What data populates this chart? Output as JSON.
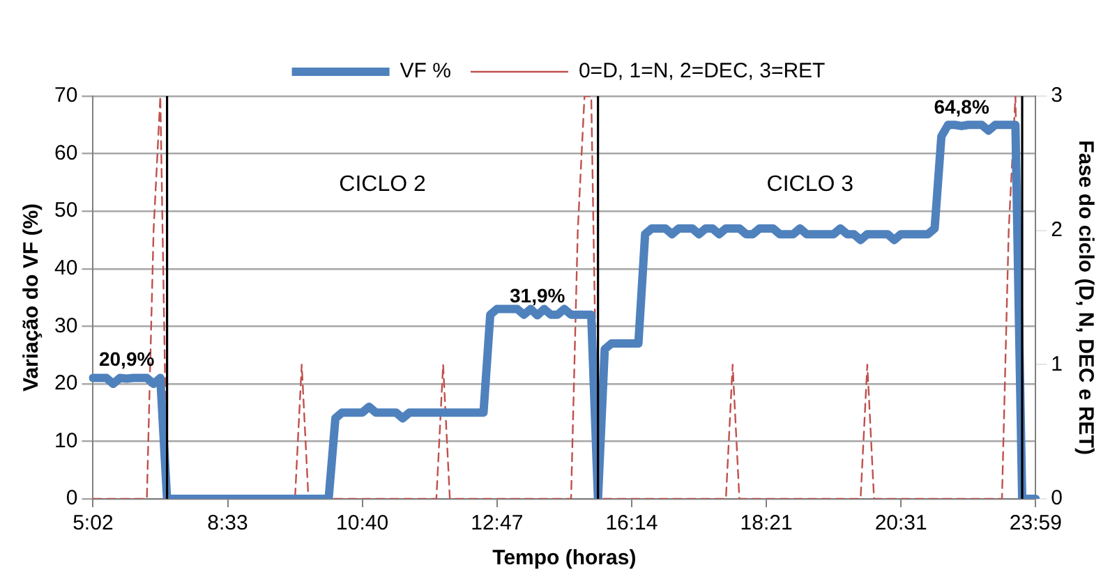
{
  "chart_data": {
    "type": "line",
    "xlabel": "Tempo (horas)",
    "ylabel": "Variação do VF (%)",
    "y2label": "Fase do ciclo (D, N, DEC e RET)",
    "categories": [
      "5:02",
      null,
      null,
      null,
      null,
      null,
      null,
      null,
      null,
      null,
      null,
      null,
      null,
      null,
      null,
      null,
      null,
      null,
      null,
      null,
      "8:33",
      null,
      null,
      null,
      null,
      null,
      null,
      null,
      null,
      null,
      null,
      null,
      null,
      null,
      null,
      null,
      null,
      null,
      null,
      null,
      "10:40",
      null,
      null,
      null,
      null,
      null,
      null,
      null,
      null,
      null,
      null,
      null,
      null,
      null,
      null,
      null,
      null,
      null,
      null,
      null,
      "12:47",
      null,
      null,
      null,
      null,
      null,
      null,
      null,
      null,
      null,
      null,
      null,
      null,
      null,
      null,
      null,
      null,
      null,
      null,
      null,
      "16:14",
      null,
      null,
      null,
      null,
      null,
      null,
      null,
      null,
      null,
      null,
      null,
      null,
      null,
      null,
      null,
      null,
      null,
      null,
      null,
      "18:21",
      null,
      null,
      null,
      null,
      null,
      null,
      null,
      null,
      null,
      null,
      null,
      null,
      null,
      null,
      null,
      null,
      null,
      null,
      null,
      "20:31",
      null,
      null,
      null,
      null,
      null,
      null,
      null,
      null,
      null,
      null,
      null,
      null,
      null,
      null,
      null,
      null,
      null,
      null,
      null,
      "23:59"
    ],
    "series": [
      {
        "name": "VF %",
        "color": "#4f81bd",
        "values": [
          21,
          21,
          21,
          20,
          21,
          20.9,
          21,
          21,
          21,
          20,
          21,
          0,
          0,
          0,
          0,
          0,
          0,
          0,
          0,
          0,
          0,
          0,
          0,
          0,
          0,
          0,
          0,
          0,
          0,
          0,
          0,
          0,
          0,
          0,
          0,
          0,
          14,
          15,
          15,
          15,
          15,
          16,
          15,
          15,
          15,
          15,
          14,
          15,
          15,
          15,
          15,
          15,
          15,
          15,
          15,
          15,
          15,
          15,
          15,
          32,
          33,
          33,
          33,
          33,
          32,
          33,
          31.9,
          33,
          32,
          32,
          33,
          32,
          32,
          32,
          32,
          0,
          26,
          27,
          27,
          27,
          27,
          27,
          46,
          47,
          47,
          47,
          46,
          47,
          47,
          47,
          46,
          47,
          47,
          46,
          47,
          47,
          47,
          46,
          46,
          47,
          47,
          47,
          46,
          46,
          46,
          47,
          46,
          46,
          46,
          46,
          46,
          47,
          46,
          46,
          45,
          46,
          46,
          46,
          46,
          45,
          46,
          46,
          46,
          46,
          46,
          47,
          63,
          65,
          65,
          64.8,
          65,
          65,
          65,
          64,
          65,
          65,
          65,
          65,
          0,
          0,
          0
        ],
        "value_labels": [
          null,
          null,
          null,
          null,
          null,
          "20,9%",
          null,
          null,
          null,
          null,
          null,
          null,
          null,
          null,
          null,
          null,
          null,
          null,
          null,
          null,
          null,
          null,
          null,
          null,
          null,
          null,
          null,
          null,
          null,
          null,
          null,
          null,
          null,
          null,
          null,
          null,
          null,
          null,
          null,
          null,
          null,
          null,
          null,
          null,
          null,
          null,
          null,
          null,
          null,
          null,
          null,
          null,
          null,
          null,
          null,
          null,
          null,
          null,
          null,
          null,
          null,
          null,
          null,
          null,
          null,
          null,
          "31,9%",
          null,
          null,
          null,
          null,
          null,
          null,
          null,
          null,
          null,
          null,
          null,
          null,
          null,
          null,
          null,
          null,
          null,
          null,
          null,
          null,
          null,
          null,
          null,
          null,
          null,
          null,
          null,
          null,
          null,
          null,
          null,
          null,
          null,
          null,
          null,
          null,
          null,
          null,
          null,
          null,
          null,
          null,
          null,
          null,
          null,
          null,
          null,
          null,
          null,
          null,
          null,
          null,
          null,
          null,
          null,
          null,
          null,
          null,
          null,
          null,
          null,
          null,
          "64,8%",
          null,
          null,
          null,
          null,
          null,
          null,
          null,
          null,
          null,
          null,
          null
        ]
      },
      {
        "name": "0=D, 1=N, 2=DEC, 3=RET",
        "color": "#c0504d",
        "axis": "y2",
        "line_style": "dashed",
        "values": [
          0,
          0,
          0,
          0,
          0,
          0,
          0,
          0,
          0,
          2,
          3,
          0,
          0,
          0,
          0,
          0,
          0,
          0,
          0,
          0,
          0,
          0,
          0,
          0,
          0,
          0,
          0,
          0,
          0,
          0,
          0,
          1,
          0,
          0,
          0,
          0,
          0,
          0,
          0,
          0,
          0,
          0,
          0,
          0,
          0,
          0,
          0,
          0,
          0,
          0,
          0,
          0,
          1,
          0,
          0,
          0,
          0,
          0,
          0,
          0,
          0,
          0,
          0,
          0,
          0,
          0,
          0,
          0,
          0,
          0,
          0,
          0,
          2,
          3,
          3,
          0,
          0,
          0,
          0,
          0,
          0,
          0,
          0,
          0,
          0,
          0,
          0,
          0,
          0,
          0,
          0,
          0,
          0,
          0,
          0,
          1,
          0,
          0,
          0,
          0,
          0,
          0,
          0,
          0,
          0,
          0,
          0,
          0,
          0,
          0,
          0,
          0,
          0,
          0,
          0,
          1,
          0,
          0,
          0,
          0,
          0,
          0,
          0,
          0,
          0,
          0,
          0,
          0,
          0,
          0,
          0,
          0,
          0,
          0,
          0,
          0,
          2,
          3,
          0,
          null,
          null
        ]
      }
    ],
    "ylim": [
      0,
      70
    ],
    "yticks": [
      0,
      10,
      20,
      30,
      40,
      50,
      60,
      70
    ],
    "y2lim": [
      0,
      3
    ],
    "y2ticks": [
      0,
      1,
      2,
      3
    ],
    "annotations": [
      "CICLO 2",
      "CICLO 3"
    ],
    "grid": "y",
    "legend": "top",
    "marker": "none",
    "line_style": "solid"
  }
}
